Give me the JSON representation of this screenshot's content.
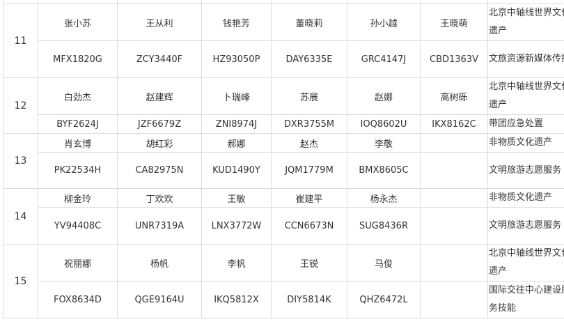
{
  "groups": [
    {
      "no": "11",
      "names": [
        "张小苏",
        "王从利",
        "钱艳芳",
        "董晓莉",
        "孙小越",
        "王晓萌"
      ],
      "ids": [
        "MFX1820G",
        "ZCY3440F",
        "HZ93050P",
        "DAY6335E",
        "GRC4147J",
        "CBD1363V"
      ],
      "course1": "北京中轴线世界文化遗产",
      "course2": "文旅资源新媒体传播"
    },
    {
      "no": "12",
      "names": [
        "白劲杰",
        "赵建辉",
        "卜瑞峰",
        "苏展",
        "赵娜",
        "高树砾"
      ],
      "ids": [
        "BYF2624J",
        "JZF6679Z",
        "ZNI8974J",
        "DXR3755M",
        "IOQ8602U",
        "IKX8162C"
      ],
      "course1": "北京中轴线世界文化遗产",
      "course2": "带团应急处置"
    },
    {
      "no": "13",
      "names": [
        "肖玄博",
        "胡红彩",
        "郝娜",
        "赵杰",
        "李敬",
        ""
      ],
      "ids": [
        "PK22534H",
        "CA82975N",
        "KUD1490Y",
        "JQM1779M",
        "BMX8605C",
        ""
      ],
      "course1": "非物质文化遗产",
      "course2": "文明旅游志愿服务"
    },
    {
      "no": "14",
      "names": [
        "柳金玲",
        "丁欢欢",
        "王敏",
        "崔建平",
        "杨永杰",
        ""
      ],
      "ids": [
        "YV94408C",
        "UNR7319A",
        "LNX3772W",
        "CCN6673N",
        "SUG8436R",
        ""
      ],
      "course1": "非物质文化遗产",
      "course2": "文明旅游志愿服务"
    },
    {
      "no": "15",
      "names": [
        "祝丽娜",
        "杨帆",
        "李帆",
        "王锐",
        "马俊",
        ""
      ],
      "ids": [
        "FOX8634D",
        "QGE9164U",
        "IKQ5812X",
        "DIY5814K",
        "QHZ6472L",
        ""
      ],
      "course1": "北京中轴线世界文化遗产",
      "course2": "国际交往中心建设服务技能"
    }
  ]
}
